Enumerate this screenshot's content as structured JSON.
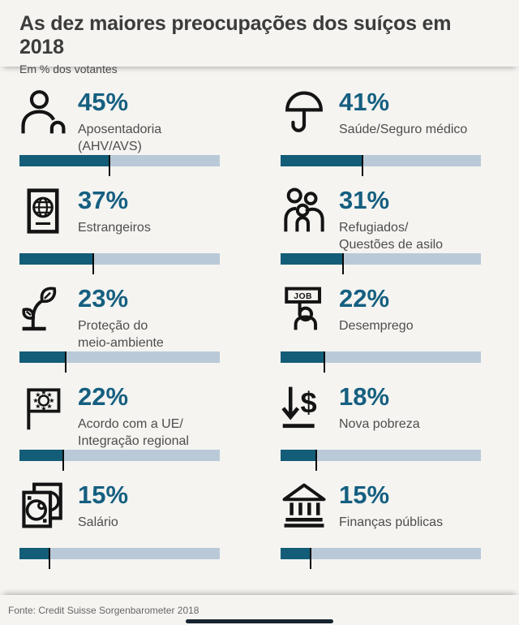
{
  "header": {
    "title": "As dez maiores preocupações dos suíços em 2018",
    "subtitle": "Em % dos votantes"
  },
  "items": [
    {
      "icon": "person-icon",
      "pct": "45%",
      "value": 45,
      "label": "Aposentadoria (AHV/AVS)"
    },
    {
      "icon": "umbrella-icon",
      "pct": "41%",
      "value": 41,
      "label": "Saúde/Seguro médico"
    },
    {
      "icon": "passport-icon",
      "pct": "37%",
      "value": 37,
      "label": "Estrangeiros"
    },
    {
      "icon": "family-icon",
      "pct": "31%",
      "value": 31,
      "label": "Refugiados/\nQuestões de asilo"
    },
    {
      "icon": "plant-icon",
      "pct": "23%",
      "value": 23,
      "label": "Proteção do\nmeio-ambiente"
    },
    {
      "icon": "job-sign-icon",
      "pct": "22%",
      "value": 22,
      "label": "Desemprego"
    },
    {
      "icon": "eu-flag-icon",
      "pct": "22%",
      "value": 22,
      "label": "Acordo com a UE/\nIntegração regional"
    },
    {
      "icon": "arrow-down-dollar-icon",
      "pct": "18%",
      "value": 18,
      "label": "Nova pobreza"
    },
    {
      "icon": "banknotes-icon",
      "pct": "15%",
      "value": 15,
      "label": "Salário"
    },
    {
      "icon": "bank-icon",
      "pct": "15%",
      "value": 15,
      "label": "Finanças públicas"
    }
  ],
  "footer": {
    "source": "Fonte: Credit Suisse Sorgenbarometer 2018"
  },
  "colors": {
    "bg": "#f5f4f1",
    "accent": "#155f80",
    "barFill": "#135d78",
    "barBg": "#b9c9d8",
    "indicator": "#16242f"
  },
  "chart_data": {
    "type": "bar",
    "title": "As dez maiores preocupações dos suíços em 2018",
    "subtitle": "Em % dos votantes",
    "categories": [
      "Aposentadoria (AHV/AVS)",
      "Saúde/Seguro médico",
      "Estrangeiros",
      "Refugiados/Questões de asilo",
      "Proteção do meio-ambiente",
      "Desemprego",
      "Acordo com a UE/Integração regional",
      "Nova pobreza",
      "Salário",
      "Finanças públicas"
    ],
    "values": [
      45,
      41,
      37,
      31,
      23,
      22,
      22,
      18,
      15,
      15
    ],
    "unit": "%",
    "xlim": [
      0,
      100
    ],
    "grid": false,
    "legend": false,
    "layout": "two-column pictogram list, each entry has icon + percentage + horizontal progress bar with tick at value",
    "source": "Fonte: Credit Suisse Sorgenbarometer 2018"
  }
}
